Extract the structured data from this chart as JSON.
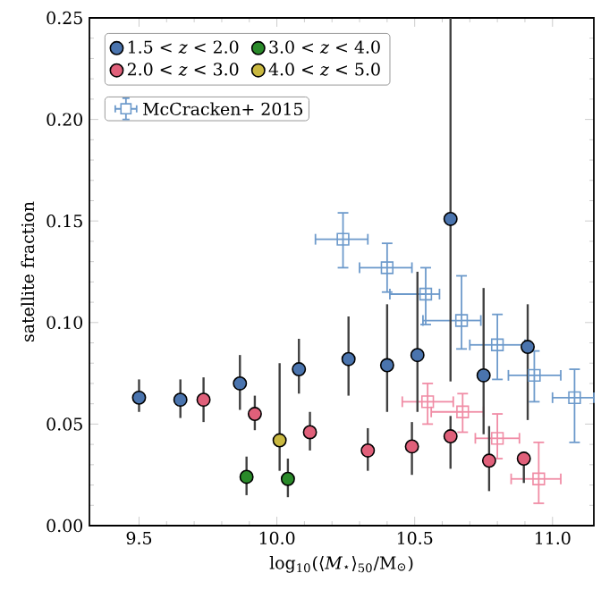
{
  "chart_data": {
    "type": "scatter",
    "xlabel": "log$_{10}$(⟨*M*$_{⋆}$⟩$_{50}$/M$_{⊙}$)",
    "ylabel": "satellite fraction",
    "xlim": [
      9.32,
      11.15
    ],
    "ylim": [
      0,
      0.25
    ],
    "xticks": [
      9.5,
      {
        "value": 10,
        "label": "10.0"
      },
      10.5,
      {
        "value": 11,
        "label": "11.0"
      }
    ],
    "yticks": [
      {
        "value": 0,
        "label": "0.00"
      },
      0.05,
      {
        "value": 0.1,
        "label": "0.10"
      },
      0.15,
      {
        "value": 0.2,
        "label": "0.20"
      },
      0.25
    ],
    "legend": "top left",
    "grid": false,
    "series": [
      {
        "name": "McCracken+ 2015",
        "color": "#6d9acb",
        "marker": "square",
        "x": [
          10.24,
          10.4,
          10.54,
          10.67,
          10.8,
          10.934,
          11.08
        ],
        "values": [
          0.141,
          0.127,
          0.114,
          0.101,
          0.089,
          0.074,
          0.063
        ],
        "errors": [
          [
            0.127,
            0.154
          ],
          [
            0.115,
            0.139
          ],
          [
            0.099,
            0.127
          ],
          [
            0.087,
            0.123
          ],
          [
            0.072,
            0.104
          ],
          [
            0.061,
            0.086
          ],
          [
            0.041,
            0.077
          ]
        ],
        "xerrors": [
          [
            10.14,
            10.33
          ],
          [
            10.3,
            10.49
          ],
          [
            10.41,
            10.59
          ],
          [
            10.53,
            10.74
          ],
          [
            10.7,
            10.9
          ],
          [
            10.84,
            11.03
          ],
          [
            11.0,
            11.15
          ]
        ]
      },
      {
        "color": "#f08ca5",
        "marker": "square",
        "x": [
          10.547,
          10.674,
          10.8,
          10.95
        ],
        "values": [
          0.061,
          0.056,
          0.043,
          0.023
        ],
        "errors": [
          [
            0.05,
            0.07
          ],
          [
            0.046,
            0.065
          ],
          [
            0.033,
            0.055
          ],
          [
            0.011,
            0.041
          ]
        ],
        "xerrors": [
          [
            10.455,
            10.64
          ],
          [
            10.56,
            10.75
          ],
          [
            10.72,
            10.88
          ],
          [
            10.85,
            11.03
          ]
        ]
      },
      {
        "name": "1.5 < *z* < 2.0",
        "color": "#4a74ae",
        "marker": "circle",
        "x": [
          9.5,
          9.65,
          9.866,
          10.08,
          10.26,
          10.4,
          10.51,
          10.63,
          10.75,
          10.91
        ],
        "values": [
          0.063,
          0.062,
          0.07,
          0.077,
          0.082,
          0.079,
          0.084,
          0.151,
          0.074,
          0.088
        ],
        "errors": [
          [
            0.056,
            0.072
          ],
          [
            0.053,
            0.072
          ],
          [
            0.057,
            0.084
          ],
          [
            0.065,
            0.092
          ],
          [
            0.064,
            0.103
          ],
          [
            0.056,
            0.109
          ],
          [
            0.056,
            0.125
          ],
          [
            0.071,
            0.25
          ],
          [
            0.045,
            0.117
          ],
          [
            0.052,
            0.109
          ]
        ]
      },
      {
        "name": "2.0 < *z* < 3.0",
        "color": "#e0607a",
        "marker": "circle",
        "x": [
          9.734,
          9.92,
          10.12,
          10.33,
          10.49,
          10.63,
          10.77,
          10.896
        ],
        "values": [
          0.062,
          0.055,
          0.046,
          0.037,
          0.039,
          0.044,
          0.032,
          0.033
        ],
        "errors": [
          [
            0.051,
            0.073
          ],
          [
            0.047,
            0.064
          ],
          [
            0.037,
            0.056
          ],
          [
            0.027,
            0.048
          ],
          [
            0.025,
            0.051
          ],
          [
            0.028,
            0.054
          ],
          [
            0.017,
            0.049
          ],
          [
            0.021,
            0.033
          ]
        ]
      },
      {
        "name": "3.0 < *z* < 4.0",
        "color": "#2a8a2a",
        "marker": "circle",
        "x": [
          9.89,
          10.04
        ],
        "values": [
          0.024,
          0.023
        ],
        "errors": [
          [
            0.015,
            0.034
          ],
          [
            0.014,
            0.033
          ]
        ]
      },
      {
        "name": "4.0 < *z* < 5.0",
        "color": "#c9b840",
        "marker": "circle",
        "x": [
          10.01
        ],
        "values": [
          0.042
        ],
        "errors": [
          [
            0.027,
            0.08
          ]
        ]
      }
    ]
  }
}
